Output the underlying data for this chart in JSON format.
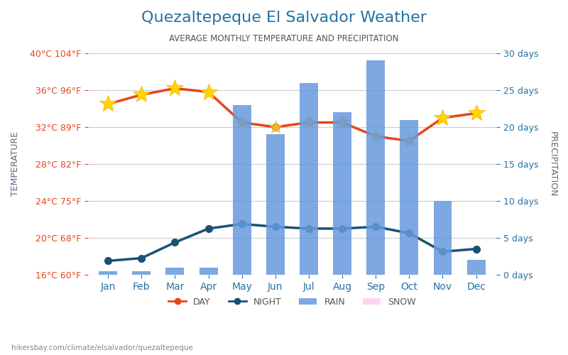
{
  "title": "Quezaltepeque El Salvador Weather",
  "subtitle": "AVERAGE MONTHLY TEMPERATURE AND PRECIPITATION",
  "footer": "hikersbay.com/climate/elsalvador/quezaltepeque",
  "months": [
    "Jan",
    "Feb",
    "Mar",
    "Apr",
    "May",
    "Jun",
    "Jul",
    "Aug",
    "Sep",
    "Oct",
    "Nov",
    "Dec"
  ],
  "day_temp": [
    34.5,
    35.5,
    36.2,
    35.8,
    32.5,
    32.0,
    32.5,
    32.5,
    31.0,
    30.5,
    33.0,
    33.5
  ],
  "night_temp": [
    17.5,
    17.8,
    19.5,
    21.0,
    21.5,
    21.2,
    21.0,
    21.0,
    21.2,
    20.5,
    18.5,
    18.8
  ],
  "rain_days": [
    0.5,
    0.5,
    1.0,
    1.0,
    23.0,
    19.0,
    26.0,
    22.0,
    29.0,
    21.0,
    10.0,
    2.0
  ],
  "snow_days": [
    0,
    0,
    0,
    0,
    0,
    0,
    0,
    0,
    0,
    0,
    0,
    0
  ],
  "temp_ylim": [
    16,
    40
  ],
  "temp_yticks": [
    16,
    20,
    24,
    28,
    32,
    36,
    40
  ],
  "temp_ytick_labels": [
    "16°C 60°F",
    "20°C 68°F",
    "24°C 75°F",
    "28°C 82°F",
    "32°C 89°F",
    "36°C 96°F",
    "40°C 104°F"
  ],
  "precip_ylim": [
    0,
    30
  ],
  "precip_yticks": [
    0,
    5,
    10,
    15,
    20,
    25,
    30
  ],
  "precip_ytick_labels": [
    "0 days",
    "5 days",
    "10 days",
    "15 days",
    "20 days",
    "25 days",
    "30 days"
  ],
  "day_color": "#e8441a",
  "night_color": "#1a5276",
  "bar_color": "#6699dd",
  "title_color": "#2471a3",
  "subtitle_color": "#555555",
  "axis_label_color": "#5d6d7e",
  "tick_color_left": "#e8441a",
  "tick_color_right": "#2471a3",
  "background_color": "#ffffff",
  "grid_color": "#cccccc"
}
